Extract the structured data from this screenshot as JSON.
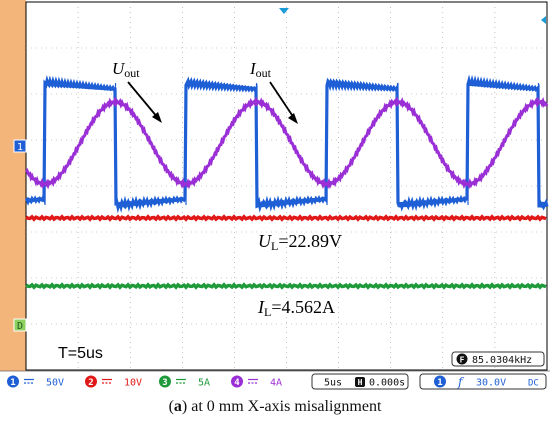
{
  "chart_data": {
    "type": "line",
    "title": "",
    "series": [
      {
        "name": "Uout",
        "channel": 1,
        "color": "#1f5fd6",
        "waveform": "square",
        "cycles": 4.3,
        "note_peak": "high",
        "note_trough": "low"
      },
      {
        "name": "Iout",
        "channel": 4,
        "color": "#9b2fd6",
        "waveform": "sine",
        "cycles": 4.3
      },
      {
        "name": "UL",
        "channel": 2,
        "color": "#e01818",
        "waveform": "dc"
      },
      {
        "name": "IL",
        "channel": 3,
        "color": "#1e9a3a",
        "waveform": "dc"
      }
    ],
    "annotations": {
      "u_out_label": "U",
      "u_out_sub": "out",
      "i_out_label": "I",
      "i_out_sub": "out",
      "ul_label": "U",
      "ul_sub": "L",
      "ul_value": "=22.89V",
      "il_label": "I",
      "il_sub": "L",
      "il_value": "=4.562A",
      "timebase_note": "T=5us"
    },
    "grid": true
  },
  "scope": {
    "channels": [
      {
        "num": "1",
        "scale": "50V",
        "color": "#1f5fd6"
      },
      {
        "num": "2",
        "scale": "10V",
        "color": "#e01818"
      },
      {
        "num": "3",
        "scale": "5A",
        "color": "#1e9a3a"
      },
      {
        "num": "4",
        "scale": "4A",
        "color": "#9b2fd6"
      }
    ],
    "timebase": "5us",
    "delay": "0.000s",
    "trigger_channel": "1",
    "trigger_symbol": "f",
    "trigger_level": "30.0V",
    "coupling": "DC",
    "frequency": "85.0304kHz",
    "freq_icon": "F",
    "hpos_icon": "H",
    "left_markers": {
      "ch1": "1",
      "ch3": "D"
    }
  },
  "caption": {
    "panel": "a",
    "text": "at 0 mm X-axis misalignment"
  }
}
